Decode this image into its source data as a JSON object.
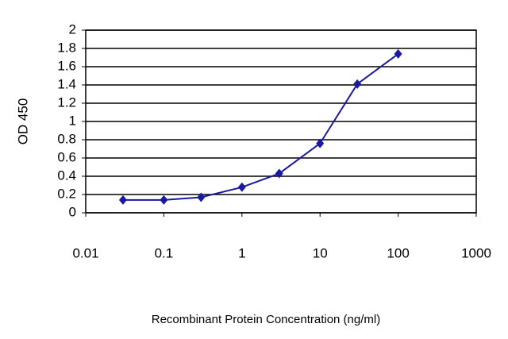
{
  "chart_data": {
    "type": "line",
    "x_label": "Recombinant Protein Concentration (ng/ml)",
    "y_label": "OD 450",
    "x_scale": "log",
    "x": [
      0.03,
      0.1,
      0.3,
      1,
      3,
      10,
      30,
      100
    ],
    "series": [
      {
        "color": "#1a1aa0",
        "values": [
          0.14,
          0.14,
          0.17,
          0.28,
          0.43,
          0.76,
          1.41,
          1.74
        ]
      }
    ],
    "xlim": [
      0.01,
      1000
    ],
    "xticks": [
      0.01,
      0.1,
      1,
      10,
      100,
      1000
    ],
    "ylim": [
      0,
      2
    ],
    "yticks": [
      0,
      0.2,
      0.4,
      0.6,
      0.8,
      1,
      1.2,
      1.4,
      1.6,
      1.8,
      2
    ],
    "grid": true
  }
}
